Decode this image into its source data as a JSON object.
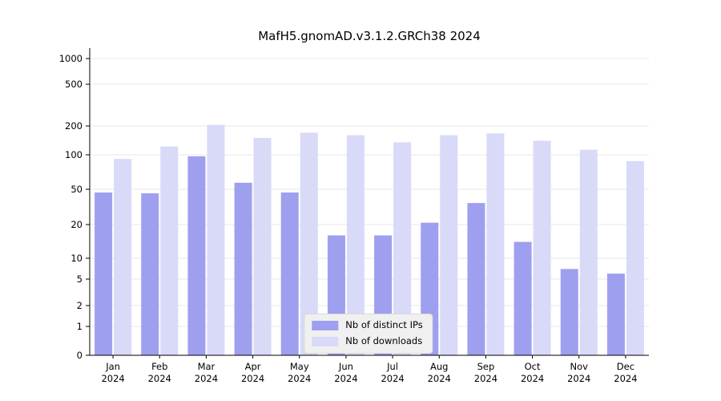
{
  "chart_data": {
    "type": "bar",
    "title": "MafH5.gnomAD.v3.1.2.GRCh38 2024",
    "categories": [
      "Jan 2024",
      "Feb 2024",
      "Mar 2024",
      "Apr 2024",
      "May 2024",
      "Jun 2024",
      "Jul 2024",
      "Aug 2024",
      "Sep 2024",
      "Oct 2024",
      "Nov 2024",
      "Dec 2024"
    ],
    "series": [
      {
        "name": "Nb of distinct IPs",
        "color": "#9f9ff0",
        "values": [
          46,
          45,
          97,
          57,
          46,
          16,
          16,
          21,
          35,
          14,
          7,
          6
        ]
      },
      {
        "name": "Nb of downloads",
        "color": "#d9d9f8",
        "values": [
          92,
          122,
          205,
          150,
          170,
          160,
          135,
          160,
          167,
          140,
          113,
          88
        ]
      }
    ],
    "yticks": [
      0,
      1,
      2,
      5,
      10,
      20,
      50,
      100,
      200,
      500,
      1000
    ],
    "ylim": [
      0,
      1000
    ],
    "yscale": "symlog",
    "grid": true,
    "legend_position": "lower center"
  }
}
